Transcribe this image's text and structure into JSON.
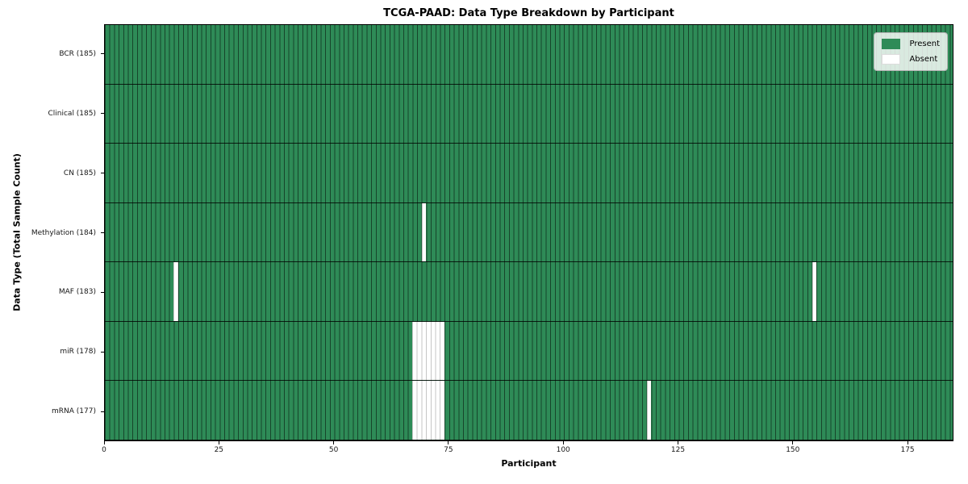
{
  "chart_data": {
    "type": "heatmap",
    "title": "TCGA-PAAD: Data Type Breakdown by Participant",
    "xlabel": "Participant",
    "ylabel": "Data Type (Total Sample Count)",
    "xlim": [
      0,
      185
    ],
    "x_ticks": [
      0,
      25,
      50,
      75,
      100,
      125,
      150,
      175
    ],
    "n_participants": 185,
    "grid": "per-participant cell edges",
    "legend_position": "upper right",
    "colors": {
      "present": "#2e8b57",
      "absent": "#ffffff",
      "present_cell_edge": "rgba(0,0,0,0.5)",
      "absent_cell_edge": "#c6c6c6"
    },
    "legend": [
      {
        "label": "Present",
        "color": "#2e8b57"
      },
      {
        "label": "Absent",
        "color": "#ffffff"
      }
    ],
    "rows": [
      {
        "label": "BCR (185)",
        "data_type": "BCR",
        "present_count": 185,
        "absent_participants": []
      },
      {
        "label": "Clinical (185)",
        "data_type": "Clinical",
        "present_count": 185,
        "absent_participants": []
      },
      {
        "label": "CN (185)",
        "data_type": "CN",
        "present_count": 185,
        "absent_participants": []
      },
      {
        "label": "Methylation (184)",
        "data_type": "Methylation",
        "present_count": 184,
        "absent_participants": [
          69
        ]
      },
      {
        "label": "MAF (183)",
        "data_type": "MAF",
        "present_count": 183,
        "absent_participants": [
          15,
          154
        ]
      },
      {
        "label": "miR (178)",
        "data_type": "miR",
        "present_count": 178,
        "absent_participants": [
          67,
          68,
          69,
          70,
          71,
          72,
          73
        ]
      },
      {
        "label": "mRNA (177)",
        "data_type": "mRNA",
        "present_count": 177,
        "absent_participants": [
          67,
          68,
          69,
          70,
          71,
          72,
          73,
          118
        ]
      }
    ]
  }
}
